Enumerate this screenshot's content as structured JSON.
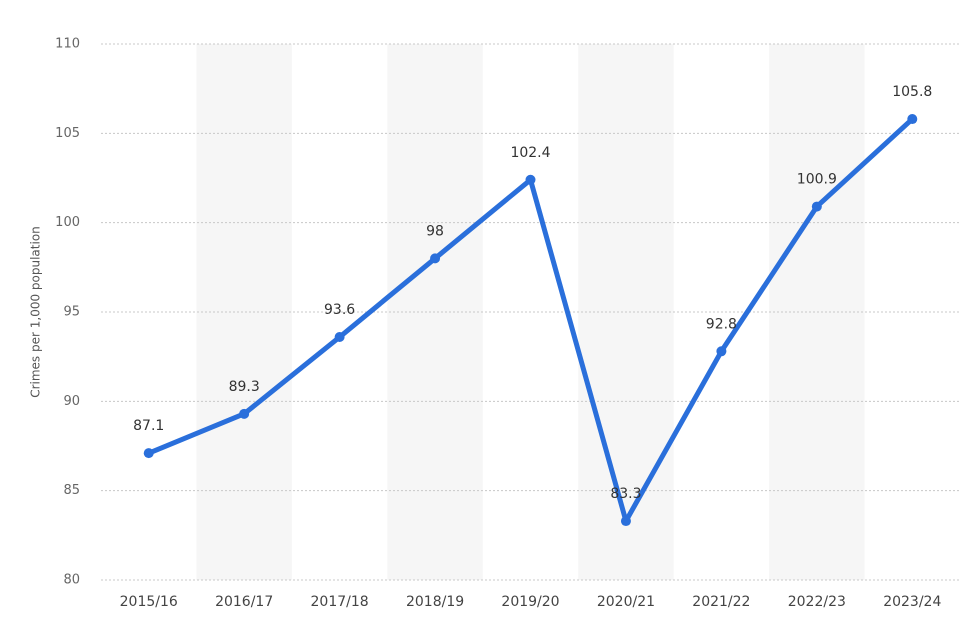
{
  "chart_data": {
    "type": "line",
    "y_axis_label": "Crimes per 1,000 population",
    "categories": [
      "2015/16",
      "2016/17",
      "2017/18",
      "2018/19",
      "2019/20",
      "2020/21",
      "2021/22",
      "2022/23",
      "2023/24"
    ],
    "series": [
      {
        "name": "Crimes per 1,000 population",
        "color": "#2a6fdb",
        "values": [
          87.1,
          89.3,
          93.6,
          98,
          102.4,
          83.3,
          92.8,
          100.9,
          105.8
        ]
      }
    ],
    "ylim": [
      80,
      110
    ],
    "yticks": [
      80,
      85,
      90,
      95,
      100,
      105,
      110
    ],
    "grid": true
  }
}
